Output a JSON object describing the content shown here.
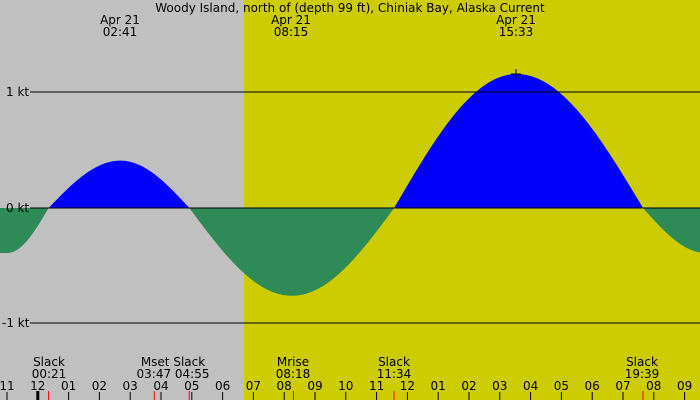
{
  "chart_data": {
    "type": "area",
    "title": "Woody Island, north of (depth 99 ft), Chiniak Bay, Alaska Current",
    "ylabel": "kt",
    "ytick_labels": [
      "1 kt",
      "0 kt",
      "-1 kt"
    ],
    "yticks": [
      1,
      0,
      -1
    ],
    "ylim": [
      -1.3,
      1.6
    ],
    "colors": {
      "night_bg": "#c0c0c0",
      "day_bg": "#cccc00",
      "flood": "#0000ff",
      "ebb": "#2e8b57",
      "moon_marker": "#ff0000",
      "sun_marker": "#000000"
    },
    "day_start_hour": 7.25,
    "x_start_hour": -1.0,
    "pixels_per_hour": 30.8,
    "hour_ticks": [
      "11",
      "12",
      "01",
      "02",
      "03",
      "04",
      "05",
      "06",
      "07",
      "08",
      "09",
      "10",
      "11",
      "12",
      "01",
      "02",
      "03",
      "04",
      "05",
      "06",
      "07",
      "08",
      "09"
    ],
    "peaks": [
      {
        "date": "Apr 21",
        "time": "02:41",
        "value": 0.41
      },
      {
        "date": "Apr 21",
        "time": "08:15",
        "value": -0.76
      },
      {
        "date": "Apr 21",
        "time": "15:33",
        "value": 1.16
      }
    ],
    "events": [
      {
        "label": "Slack",
        "time": "00:21"
      },
      {
        "label": "Mset",
        "time": "03:47"
      },
      {
        "label": "Slack",
        "time": "04:55"
      },
      {
        "label": "Mrise",
        "time": "08:18"
      },
      {
        "label": "Slack",
        "time": "11:34"
      },
      {
        "label": "Slack",
        "time": "19:39"
      }
    ],
    "series": [
      {
        "name": "current",
        "x_hours": [
          -1.0,
          0.35,
          2.68,
          4.92,
          8.25,
          11.57,
          15.55,
          19.65,
          21.7
        ],
        "values": [
          -0.39,
          0.0,
          0.41,
          0.0,
          -0.76,
          0.0,
          1.16,
          0.0,
          -0.39
        ]
      }
    ]
  },
  "header": {
    "title": "Woody Island, north of (depth 99 ft), Chiniak Bay, Alaska Current",
    "peak_labels": [
      {
        "date": "Apr 21",
        "time": "02:41"
      },
      {
        "date": "Apr 21",
        "time": "08:15"
      },
      {
        "date": "Apr 21",
        "time": "15:33"
      }
    ]
  },
  "footer": {
    "events": [
      {
        "name": "Slack",
        "time": "00:21"
      },
      {
        "name": "Mset Slack",
        "time": "03:47 04:55"
      },
      {
        "name": "Mrise",
        "time": "08:18"
      },
      {
        "name": "Slack",
        "time": "11:34"
      },
      {
        "name": "Slack",
        "time": "19:39"
      }
    ]
  }
}
